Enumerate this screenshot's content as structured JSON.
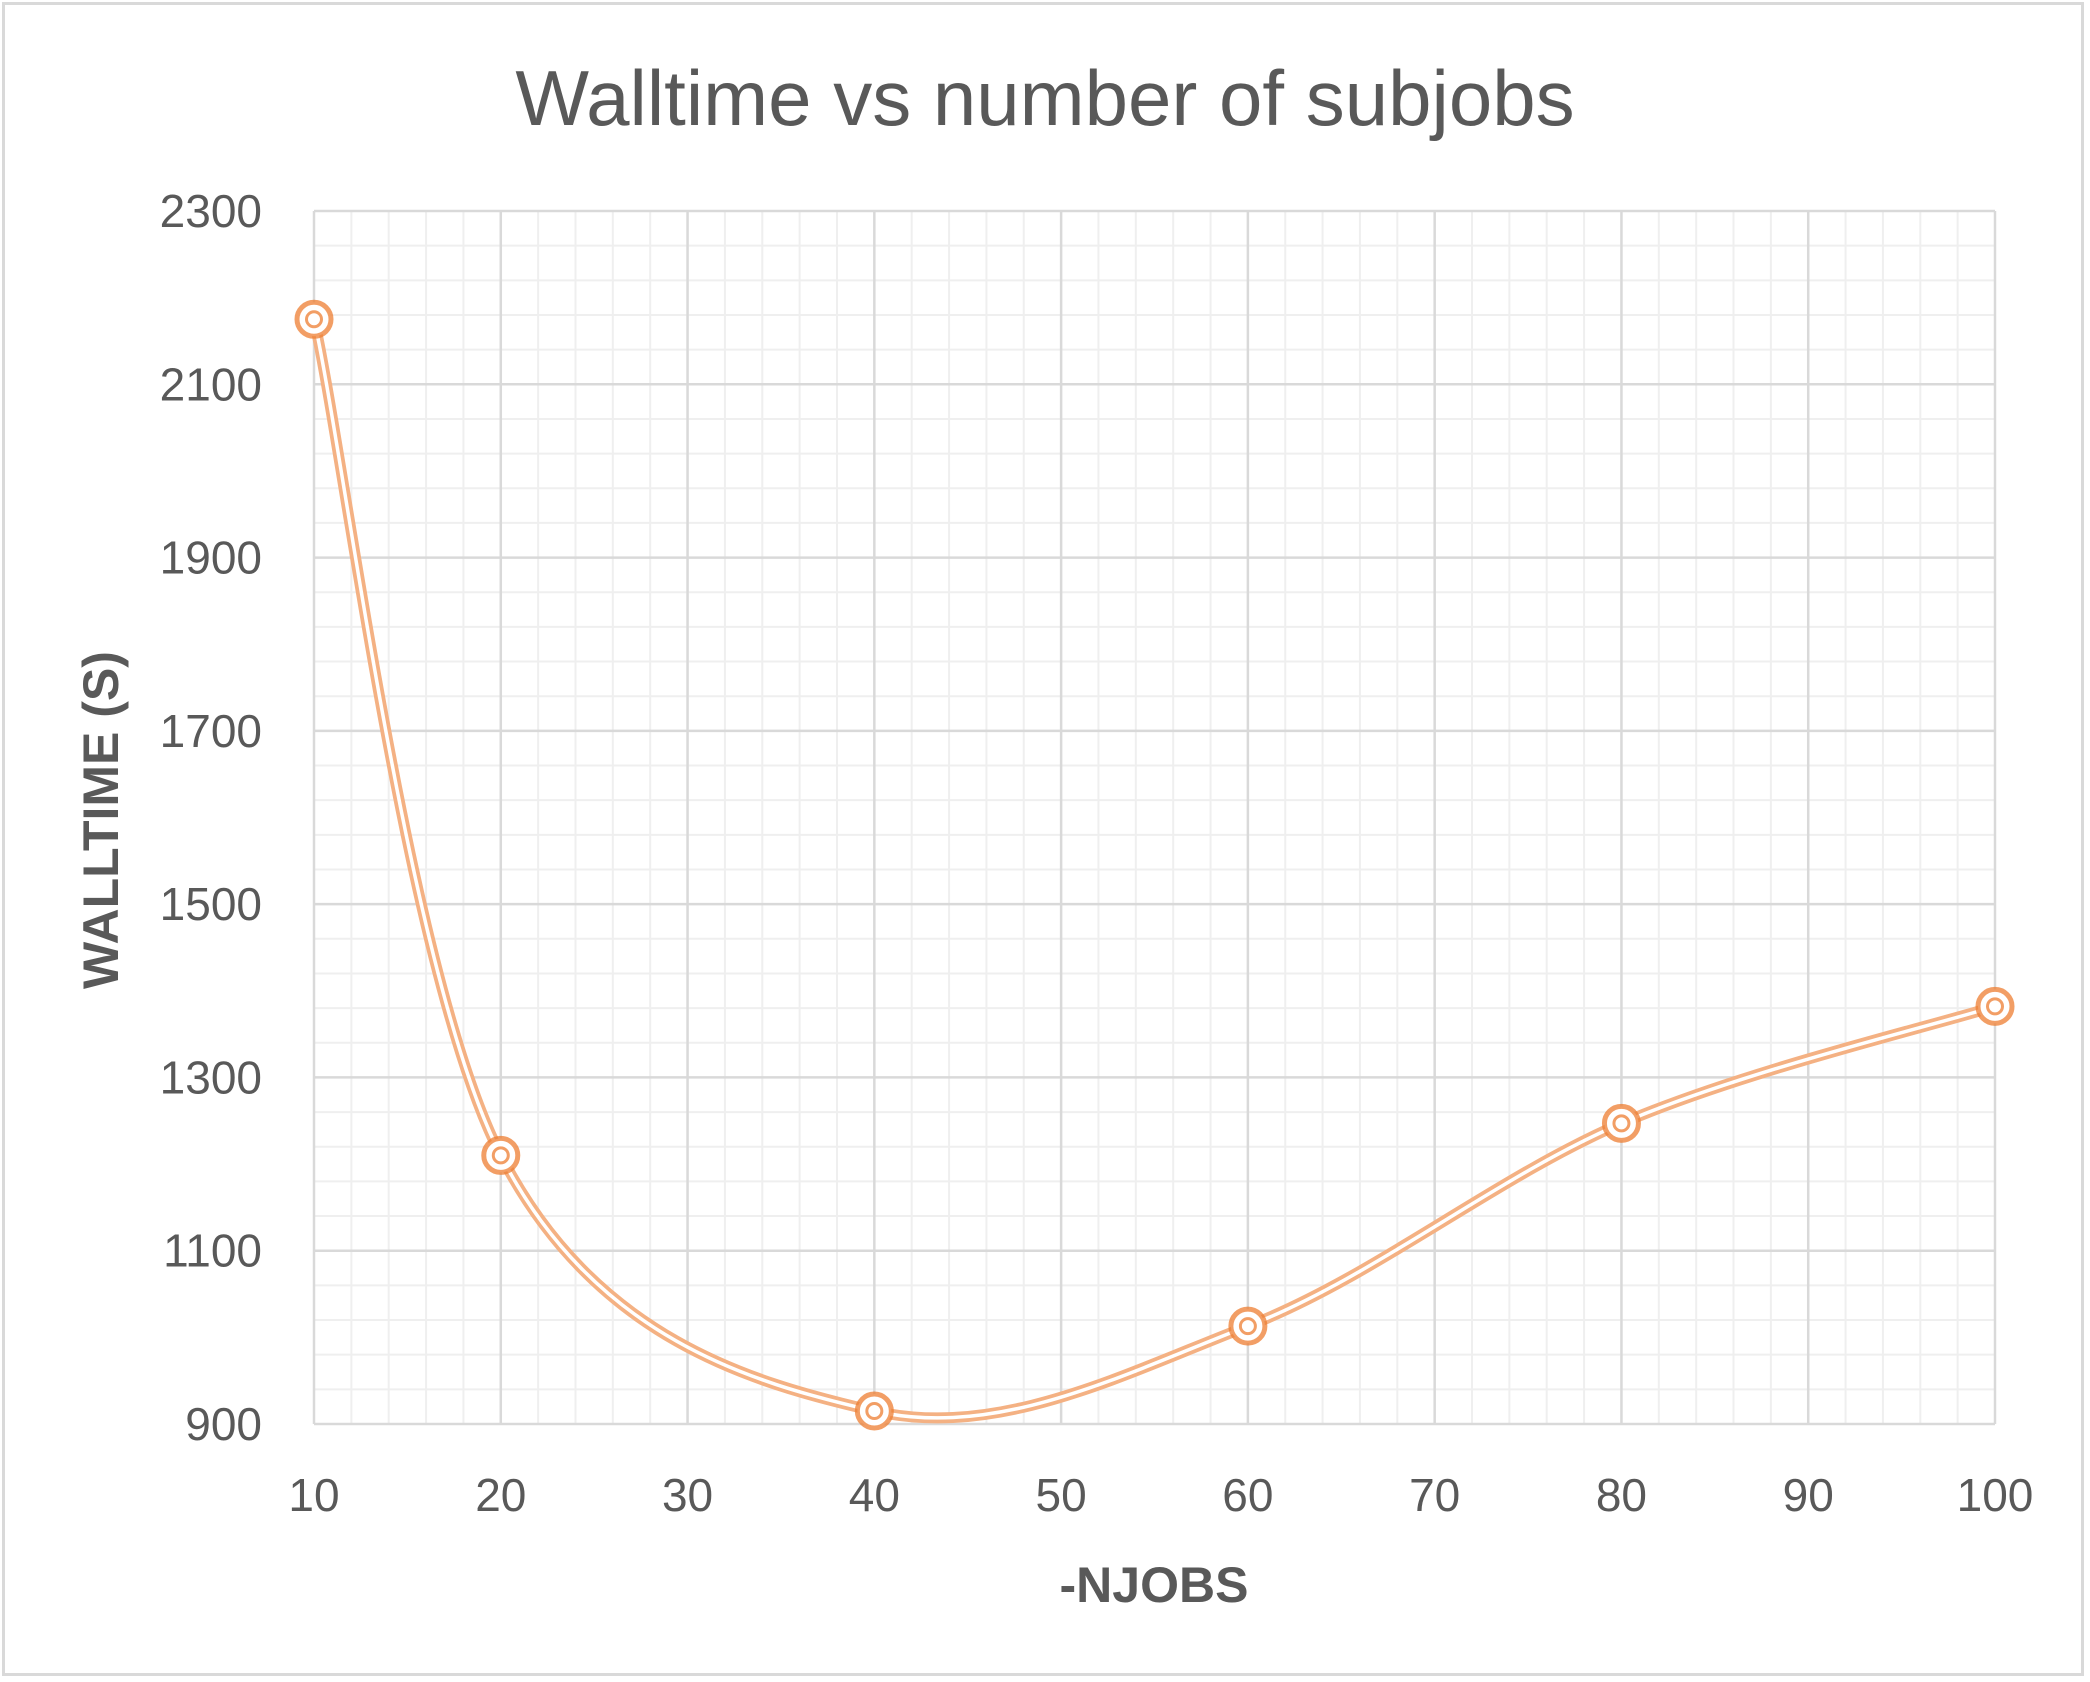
{
  "chart_data": {
    "type": "line",
    "title": "Walltime vs number of subjobs",
    "xlabel": "-NJOBS",
    "ylabel": "WALLTIME (S)",
    "x_ticks": [
      "10",
      "20",
      "30",
      "40",
      "50",
      "60",
      "70",
      "80",
      "90",
      "100"
    ],
    "y_ticks": [
      "900",
      "1100",
      "1300",
      "1500",
      "1700",
      "1900",
      "2100",
      "2300"
    ],
    "xlim": [
      10,
      100
    ],
    "ylim": [
      900,
      2300
    ],
    "grid": true,
    "minor_grid": true,
    "smooth": true,
    "marker": "circle",
    "legend": "none",
    "series": [
      {
        "x": [
          10,
          20,
          40,
          60,
          80,
          100
        ],
        "y": [
          2175,
          1210,
          915,
          1013,
          1247,
          1382
        ],
        "color": "#f4b183",
        "marker_color": "#ed7d31"
      }
    ]
  }
}
